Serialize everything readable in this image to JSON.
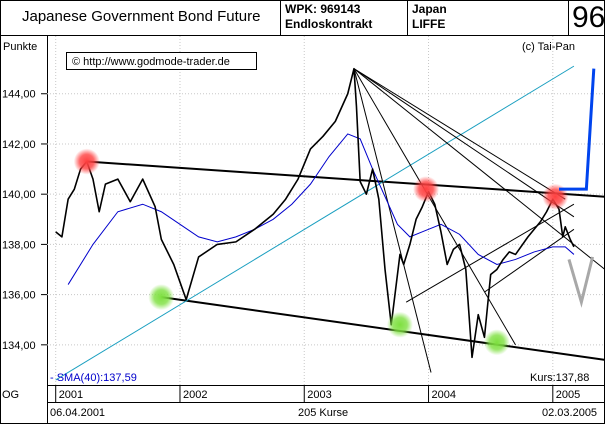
{
  "header": {
    "title": "Japanese Government Bond Future",
    "wpk": "WPK: 969143",
    "contract": "Endloskontrakt",
    "country": "Japan",
    "exchange": "LIFFE",
    "number": "96"
  },
  "colors": {
    "price": "#000000",
    "sma": "#0000cc",
    "trend_cyan": "#1a9fc0",
    "projection_blue": "#0044ee",
    "projection_gray": "#a8a8a8",
    "marker_red": "#ff4040",
    "marker_green": "#7ee040"
  },
  "chart_data": {
    "type": "line",
    "ylabel": "Punkte",
    "copyright": "(c) Tai-Pan",
    "url_box": "© http://www.godmode-trader.de",
    "sma_label": "- SMA(40):137,59",
    "last_label": "Kurs:137,88",
    "left_label": "OG",
    "date_start": "06.04.2001",
    "date_end": "02.03.2005",
    "count_label": "205 Kurse",
    "ylim": [
      132.4,
      146.3
    ],
    "xlim": [
      2000.93,
      2005.42
    ],
    "y_ticks": [
      134,
      136,
      138,
      140,
      142,
      144
    ],
    "y_tick_labels": [
      "134,00",
      "136,00",
      "138,00",
      "140,00",
      "142,00",
      "144,00"
    ],
    "x_ticks": [
      2001,
      2002,
      2003,
      2004,
      2005
    ],
    "x_tick_labels": [
      "2001",
      "2002",
      "2003",
      "2004",
      "2005"
    ],
    "series": [
      {
        "name": "Kurs",
        "x": [
          2001.0,
          2001.05,
          2001.1,
          2001.15,
          2001.2,
          2001.25,
          2001.3,
          2001.35,
          2001.4,
          2001.5,
          2001.6,
          2001.7,
          2001.8,
          2001.85,
          2001.95,
          2002.0,
          2002.05,
          2002.15,
          2002.3,
          2002.45,
          2002.6,
          2002.75,
          2002.85,
          2002.95,
          2003.05,
          2003.15,
          2003.25,
          2003.35,
          2003.4,
          2003.42,
          2003.45,
          2003.5,
          2003.55,
          2003.6,
          2003.65,
          2003.7,
          2003.73,
          2003.77,
          2003.8,
          2003.85,
          2003.9,
          2003.95,
          2004.0,
          2004.05,
          2004.1,
          2004.15,
          2004.2,
          2004.25,
          2004.3,
          2004.35,
          2004.4,
          2004.45,
          2004.5,
          2004.55,
          2004.6,
          2004.65,
          2004.7,
          2004.8,
          2004.9,
          2004.95,
          2005.0,
          2005.05,
          2005.08,
          2005.1,
          2005.14,
          2005.17
        ],
        "values": [
          138.5,
          138.3,
          139.8,
          140.2,
          141.0,
          141.3,
          140.6,
          139.3,
          140.4,
          140.6,
          139.7,
          140.6,
          139.5,
          138.2,
          137.2,
          136.5,
          135.8,
          137.5,
          138.0,
          138.1,
          138.6,
          139.2,
          139.8,
          140.6,
          141.8,
          142.3,
          142.9,
          144.0,
          145.0,
          143.5,
          140.5,
          140.0,
          141.0,
          139.8,
          137.0,
          134.8,
          136.0,
          137.6,
          137.2,
          138.0,
          139.0,
          139.5,
          140.1,
          139.6,
          138.5,
          137.2,
          137.8,
          138.0,
          137.0,
          133.5,
          135.2,
          134.3,
          136.8,
          137.0,
          137.4,
          137.7,
          137.6,
          138.3,
          138.9,
          139.3,
          139.8,
          139.4,
          138.3,
          138.7,
          138.2,
          137.9
        ]
      },
      {
        "name": "SMA(40)",
        "x": [
          2001.1,
          2001.3,
          2001.5,
          2001.7,
          2001.85,
          2002.0,
          2002.15,
          2002.3,
          2002.45,
          2002.6,
          2002.75,
          2002.9,
          2003.05,
          2003.2,
          2003.35,
          2003.45,
          2003.55,
          2003.65,
          2003.75,
          2003.85,
          2003.95,
          2004.1,
          2004.25,
          2004.4,
          2004.55,
          2004.7,
          2004.85,
          2005.0,
          2005.1,
          2005.17
        ],
        "values": [
          136.4,
          138.0,
          139.3,
          139.6,
          139.3,
          138.8,
          138.3,
          138.1,
          138.3,
          138.6,
          139.0,
          139.6,
          140.4,
          141.5,
          142.4,
          142.2,
          141.0,
          139.9,
          138.8,
          138.3,
          138.5,
          138.8,
          138.4,
          137.6,
          137.2,
          137.4,
          137.7,
          137.9,
          137.9,
          137.6
        ]
      }
    ],
    "trendlines": [
      {
        "type": "black-thick",
        "x1": 2001.25,
        "y1": 141.3,
        "x2": 2005.42,
        "y2": 139.9
      },
      {
        "type": "black-thick",
        "x1": 2001.85,
        "y1": 135.9,
        "x2": 2005.42,
        "y2": 133.4
      },
      {
        "type": "cyan",
        "x1": 2001.0,
        "y1": 132.6,
        "x2": 2005.17,
        "y2": 145.1
      },
      {
        "type": "fan",
        "x1": 2003.4,
        "y1": 145.0,
        "x2": 2004.02,
        "y2": 132.9
      },
      {
        "type": "fan",
        "x1": 2003.4,
        "y1": 145.0,
        "x2": 2004.7,
        "y2": 134.0
      },
      {
        "type": "fan",
        "x1": 2003.4,
        "y1": 145.0,
        "x2": 2005.42,
        "y2": 137.0
      },
      {
        "type": "fan",
        "x1": 2003.4,
        "y1": 145.0,
        "x2": 2005.1,
        "y2": 139.8
      },
      {
        "type": "fan",
        "x1": 2003.4,
        "y1": 145.0,
        "x2": 2005.17,
        "y2": 139.1
      },
      {
        "type": "channel",
        "x1": 2003.82,
        "y1": 135.7,
        "x2": 2005.17,
        "y2": 139.6
      },
      {
        "type": "channel",
        "x1": 2004.45,
        "y1": 136.1,
        "x2": 2005.17,
        "y2": 138.6
      }
    ],
    "markers": [
      {
        "color": "red",
        "x": 2001.25,
        "y": 141.3
      },
      {
        "color": "red",
        "x": 2003.98,
        "y": 140.2
      },
      {
        "color": "red",
        "x": 2005.02,
        "y": 139.9
      },
      {
        "color": "green",
        "x": 2001.85,
        "y": 135.9
      },
      {
        "color": "green",
        "x": 2003.77,
        "y": 134.8
      },
      {
        "color": "green",
        "x": 2004.55,
        "y": 134.1
      }
    ],
    "projection_blue": {
      "x": [
        2005.05,
        2005.27,
        2005.33
      ],
      "y": [
        140.2,
        140.2,
        145.0
      ]
    },
    "projection_gray": {
      "x": [
        2005.13,
        2005.23,
        2005.32
      ],
      "y": [
        137.4,
        135.7,
        137.5
      ]
    },
    "grid": true
  }
}
